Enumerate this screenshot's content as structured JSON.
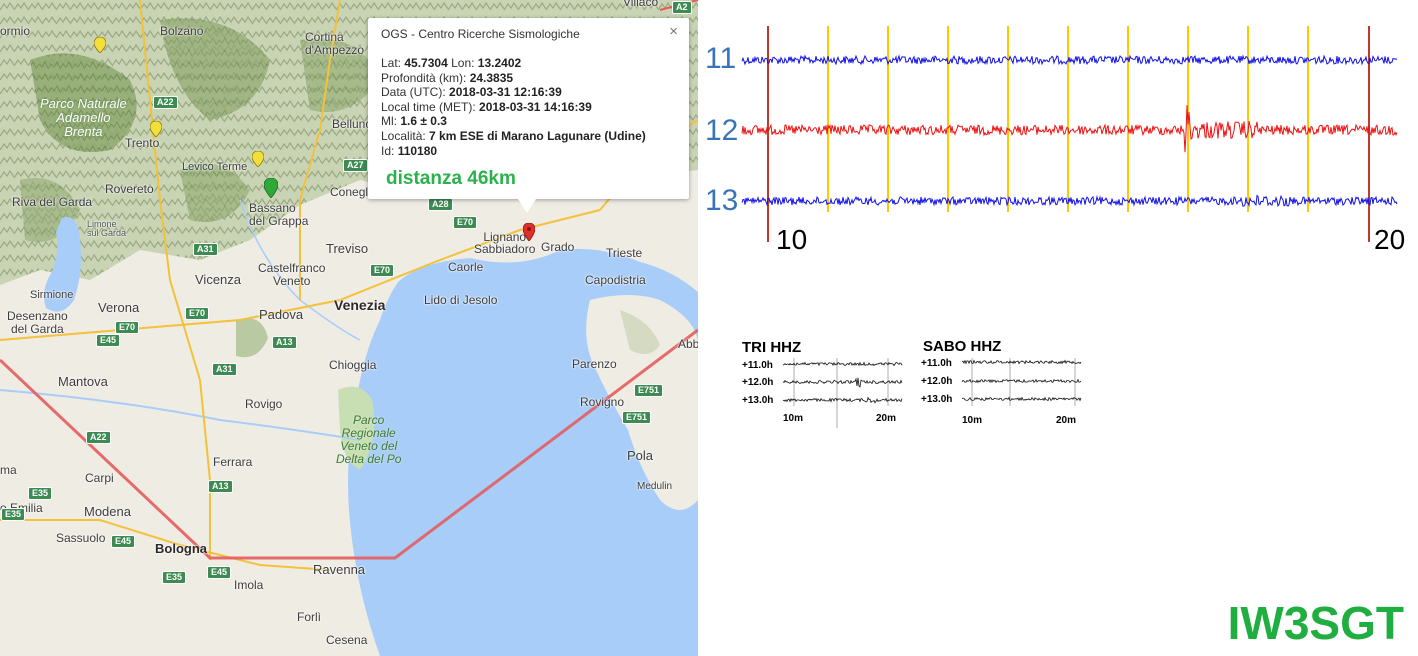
{
  "map": {
    "places": {
      "bolzano": "Bolzano",
      "cortina": "Cortina\nd'Ampezzo",
      "villaco": "Villaco",
      "trento": "Trento",
      "levico": "Levico Terme",
      "belluno": "Belluno",
      "rovereto": "Rovereto",
      "riva": "Riva del Garda",
      "bassano": "Bassano\ndel Grappa",
      "conegliano": "Conegli",
      "treviso": "Treviso",
      "vicenza": "Vicenza",
      "castelfranco": "Castelfranco\nVeneto",
      "verona": "Verona",
      "sirmione": "Sirmione",
      "desenzano": "Desenzano\ndel Garda",
      "padova": "Padova",
      "venezia": "Venezia",
      "lido": "Lido di Jesolo",
      "caorle": "Caorle",
      "lignano": "Lignano\nSabbiadoro",
      "grado": "Grado",
      "trieste": "Trieste",
      "capodistria": "Capodistria",
      "mantova": "Mantova",
      "chioggia": "Chioggia",
      "rovigo": "Rovigo",
      "parenzo": "Parenzo",
      "rovigno": "Rovigno",
      "pola": "Pola",
      "medulin": "Medulin",
      "carpi": "Carpi",
      "ferrara": "Ferrara",
      "modena": "Modena",
      "emilia": "o Emilia",
      "sassuolo": "Sassuolo",
      "bologna": "Bologna",
      "imola": "Imola",
      "ravenna": "Ravenna",
      "forli": "Forlì",
      "cesena": "Cesena",
      "ormio": "ormio",
      "abb": "Abb",
      "ma": "ma",
      "limone": "Limone\nsul Garda",
      "park1": "Parco Naturale\nAdamello\nBrenta",
      "park2": "Parco\nRegionale\nVeneto del\nDelta del Po"
    },
    "roads": [
      "A22",
      "A27",
      "A28",
      "E70",
      "E70",
      "A31",
      "A31",
      "E70",
      "A13",
      "E45",
      "A31",
      "A13",
      "A22",
      "E35",
      "E45",
      "E35",
      "E45",
      "E751",
      "E751",
      "A2",
      "E70"
    ]
  },
  "popup": {
    "title": "OGS - Centro Ricerche Sismologiche",
    "close_label": "×",
    "rows": [
      {
        "label": "Lat:",
        "value": "45.7304",
        "label2": "Lon:",
        "value2": "13.2402"
      },
      {
        "label": "Profondità (km):",
        "value": "24.3835"
      },
      {
        "label": "Data (UTC):",
        "value": "2018-03-31 12:16:39"
      },
      {
        "label": "Local time (MET):",
        "value": "2018-03-31 14:16:39"
      },
      {
        "label": "Ml:",
        "value": "1.6 ± 0.3"
      },
      {
        "label": "Località:",
        "value": "7 km ESE di Marano Lagunare (Udine)"
      },
      {
        "label": "Id:",
        "value": "110180"
      }
    ],
    "distance": "distanza 46km"
  },
  "seismogram": {
    "channels": [
      {
        "label": "11",
        "color": "#1010e8"
      },
      {
        "label": "12",
        "color": "#ee1111"
      },
      {
        "label": "13",
        "color": "#1010e8"
      }
    ],
    "tick_labels": [
      "10",
      "20"
    ],
    "marker_color": "#ffc800",
    "minute_marker_color": "#c0392b"
  },
  "mini_plots": [
    {
      "station": "TRI HHZ",
      "rows": [
        "+11.0h",
        "+12.0h",
        "+13.0h"
      ],
      "ticks": [
        "10m",
        "20m"
      ]
    },
    {
      "station": "SABO HHZ",
      "rows": [
        "+11.0h",
        "+12.0h",
        "+13.0h"
      ],
      "ticks": [
        "10m",
        "20m"
      ]
    }
  ],
  "callsign": "IW3SGT"
}
